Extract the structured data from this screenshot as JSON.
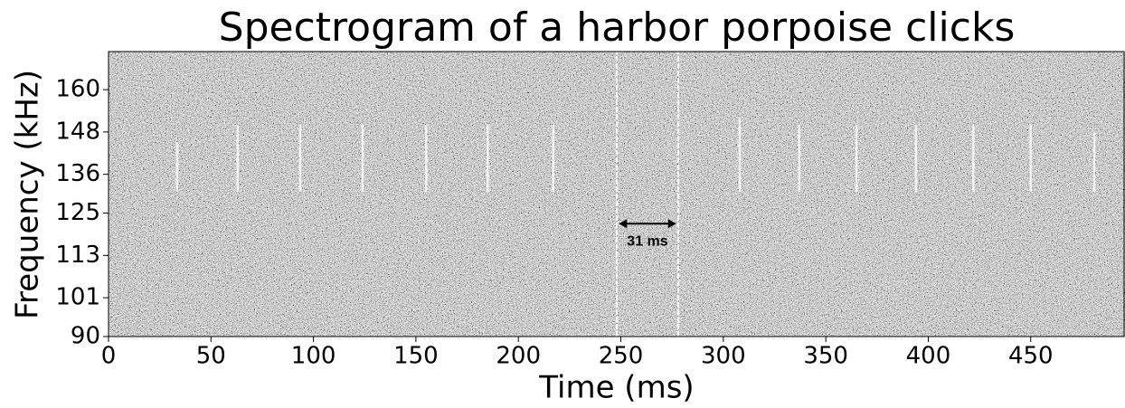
{
  "chart_data": {
    "type": "spectrogram",
    "title": "Spectrogram of a harbor porpoise clicks",
    "xlabel": "Time (ms)",
    "ylabel": "Frequency (kHz)",
    "xlim": [
      0,
      496
    ],
    "ylim": [
      90,
      170.8
    ],
    "xticks": [
      0,
      50,
      100,
      150,
      200,
      250,
      300,
      350,
      400,
      450
    ],
    "yticks": [
      90,
      101,
      113,
      125,
      136,
      148,
      160
    ],
    "clicks": {
      "times": [
        33.5,
        63,
        93.5,
        124,
        155,
        185,
        217,
        248,
        278,
        308,
        337,
        365,
        394,
        422,
        450,
        481
      ],
      "f_low": [
        131,
        131,
        131,
        131,
        131,
        131,
        131,
        90,
        90,
        131,
        131,
        131,
        131,
        131,
        131,
        131
      ],
      "f_high": [
        145,
        150,
        150,
        150,
        150,
        150,
        150,
        170.8,
        170.8,
        152,
        150,
        150,
        150,
        150,
        150,
        148
      ]
    },
    "annotations": [
      {
        "text": "31 ms",
        "x": [
          249,
          277
        ],
        "y": 122
      }
    ]
  }
}
